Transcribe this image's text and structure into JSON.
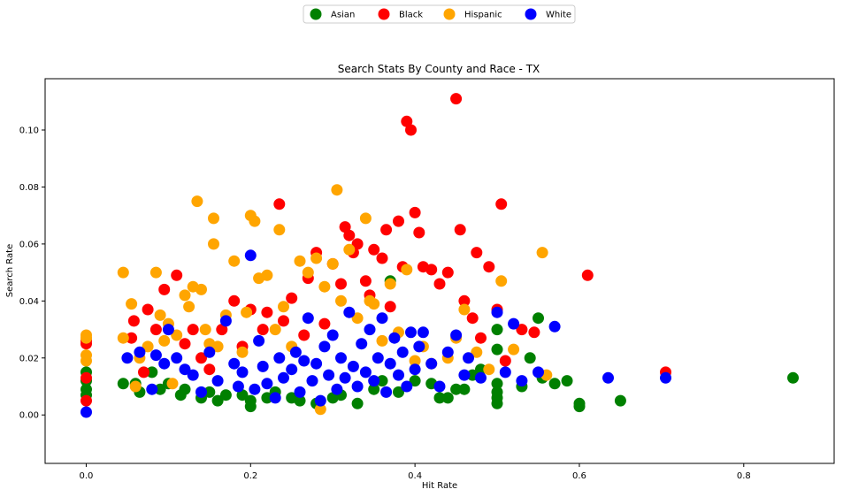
{
  "chart_data": {
    "type": "scatter",
    "title": "Search Stats By County and Race - TX",
    "xlabel": "Hit Rate",
    "ylabel": "Search Rate",
    "xlim": [
      -0.05,
      0.91
    ],
    "ylim": [
      -0.017,
      0.118
    ],
    "xticks": [
      0.0,
      0.2,
      0.4,
      0.6,
      0.8
    ],
    "xtick_labels": [
      "0.0",
      "0.2",
      "0.4",
      "0.6",
      "0.8"
    ],
    "yticks": [
      0.0,
      0.02,
      0.04,
      0.06,
      0.08,
      0.1
    ],
    "ytick_labels": [
      "0.00",
      "0.02",
      "0.04",
      "0.06",
      "0.08",
      "0.10"
    ],
    "grid": false,
    "legend": "top-center",
    "series": [
      {
        "name": "Asian",
        "color": "#008000",
        "points": [
          [
            0.0,
            0.015
          ],
          [
            0.0,
            0.012
          ],
          [
            0.0,
            0.009
          ],
          [
            0.0,
            0.007
          ],
          [
            0.045,
            0.011
          ],
          [
            0.06,
            0.011
          ],
          [
            0.065,
            0.008
          ],
          [
            0.08,
            0.015
          ],
          [
            0.09,
            0.009
          ],
          [
            0.1,
            0.011
          ],
          [
            0.115,
            0.007
          ],
          [
            0.12,
            0.009
          ],
          [
            0.14,
            0.006
          ],
          [
            0.15,
            0.008
          ],
          [
            0.16,
            0.005
          ],
          [
            0.17,
            0.007
          ],
          [
            0.19,
            0.007
          ],
          [
            0.2,
            0.005
          ],
          [
            0.2,
            0.003
          ],
          [
            0.22,
            0.006
          ],
          [
            0.23,
            0.008
          ],
          [
            0.25,
            0.006
          ],
          [
            0.26,
            0.005
          ],
          [
            0.28,
            0.004
          ],
          [
            0.3,
            0.006
          ],
          [
            0.31,
            0.007
          ],
          [
            0.33,
            0.004
          ],
          [
            0.35,
            0.009
          ],
          [
            0.36,
            0.012
          ],
          [
            0.37,
            0.047
          ],
          [
            0.38,
            0.008
          ],
          [
            0.4,
            0.012
          ],
          [
            0.42,
            0.011
          ],
          [
            0.43,
            0.006
          ],
          [
            0.44,
            0.006
          ],
          [
            0.45,
            0.009
          ],
          [
            0.46,
            0.009
          ],
          [
            0.47,
            0.014
          ],
          [
            0.48,
            0.016
          ],
          [
            0.5,
            0.004
          ],
          [
            0.5,
            0.006
          ],
          [
            0.5,
            0.008
          ],
          [
            0.5,
            0.011
          ],
          [
            0.5,
            0.023
          ],
          [
            0.5,
            0.03
          ],
          [
            0.53,
            0.01
          ],
          [
            0.54,
            0.02
          ],
          [
            0.55,
            0.034
          ],
          [
            0.555,
            0.013
          ],
          [
            0.57,
            0.011
          ],
          [
            0.585,
            0.012
          ],
          [
            0.6,
            0.003
          ],
          [
            0.6,
            0.004
          ],
          [
            0.65,
            0.005
          ],
          [
            0.86,
            0.013
          ]
        ]
      },
      {
        "name": "Black",
        "color": "#ff0000",
        "points": [
          [
            0.0,
            0.026
          ],
          [
            0.0,
            0.025
          ],
          [
            0.0,
            0.005
          ],
          [
            0.0,
            0.013
          ],
          [
            0.055,
            0.027
          ],
          [
            0.058,
            0.033
          ],
          [
            0.07,
            0.015
          ],
          [
            0.075,
            0.037
          ],
          [
            0.085,
            0.03
          ],
          [
            0.095,
            0.044
          ],
          [
            0.11,
            0.049
          ],
          [
            0.12,
            0.025
          ],
          [
            0.13,
            0.03
          ],
          [
            0.14,
            0.02
          ],
          [
            0.15,
            0.016
          ],
          [
            0.165,
            0.03
          ],
          [
            0.18,
            0.04
          ],
          [
            0.19,
            0.024
          ],
          [
            0.2,
            0.037
          ],
          [
            0.215,
            0.03
          ],
          [
            0.22,
            0.036
          ],
          [
            0.235,
            0.074
          ],
          [
            0.24,
            0.033
          ],
          [
            0.25,
            0.041
          ],
          [
            0.265,
            0.028
          ],
          [
            0.27,
            0.048
          ],
          [
            0.28,
            0.057
          ],
          [
            0.29,
            0.032
          ],
          [
            0.3,
            0.053
          ],
          [
            0.31,
            0.046
          ],
          [
            0.315,
            0.066
          ],
          [
            0.32,
            0.063
          ],
          [
            0.325,
            0.057
          ],
          [
            0.33,
            0.06
          ],
          [
            0.34,
            0.047
          ],
          [
            0.345,
            0.042
          ],
          [
            0.35,
            0.058
          ],
          [
            0.36,
            0.055
          ],
          [
            0.365,
            0.065
          ],
          [
            0.37,
            0.038
          ],
          [
            0.38,
            0.068
          ],
          [
            0.385,
            0.052
          ],
          [
            0.39,
            0.103
          ],
          [
            0.395,
            0.1
          ],
          [
            0.4,
            0.071
          ],
          [
            0.405,
            0.064
          ],
          [
            0.41,
            0.052
          ],
          [
            0.42,
            0.051
          ],
          [
            0.43,
            0.046
          ],
          [
            0.44,
            0.05
          ],
          [
            0.45,
            0.111
          ],
          [
            0.455,
            0.065
          ],
          [
            0.46,
            0.04
          ],
          [
            0.47,
            0.034
          ],
          [
            0.475,
            0.057
          ],
          [
            0.48,
            0.027
          ],
          [
            0.49,
            0.052
          ],
          [
            0.5,
            0.037
          ],
          [
            0.505,
            0.074
          ],
          [
            0.51,
            0.019
          ],
          [
            0.53,
            0.03
          ],
          [
            0.545,
            0.029
          ],
          [
            0.61,
            0.049
          ],
          [
            0.705,
            0.015
          ]
        ]
      },
      {
        "name": "Hispanic",
        "color": "#ffa500",
        "points": [
          [
            0.0,
            0.028
          ],
          [
            0.0,
            0.027
          ],
          [
            0.0,
            0.021
          ],
          [
            0.0,
            0.019
          ],
          [
            0.045,
            0.05
          ],
          [
            0.045,
            0.027
          ],
          [
            0.055,
            0.039
          ],
          [
            0.06,
            0.01
          ],
          [
            0.065,
            0.02
          ],
          [
            0.075,
            0.024
          ],
          [
            0.085,
            0.05
          ],
          [
            0.09,
            0.035
          ],
          [
            0.095,
            0.026
          ],
          [
            0.1,
            0.032
          ],
          [
            0.105,
            0.011
          ],
          [
            0.11,
            0.028
          ],
          [
            0.12,
            0.042
          ],
          [
            0.125,
            0.038
          ],
          [
            0.13,
            0.045
          ],
          [
            0.135,
            0.075
          ],
          [
            0.14,
            0.044
          ],
          [
            0.145,
            0.03
          ],
          [
            0.15,
            0.025
          ],
          [
            0.155,
            0.069
          ],
          [
            0.155,
            0.06
          ],
          [
            0.16,
            0.024
          ],
          [
            0.17,
            0.035
          ],
          [
            0.18,
            0.054
          ],
          [
            0.19,
            0.022
          ],
          [
            0.195,
            0.036
          ],
          [
            0.2,
            0.07
          ],
          [
            0.205,
            0.068
          ],
          [
            0.21,
            0.048
          ],
          [
            0.22,
            0.049
          ],
          [
            0.23,
            0.03
          ],
          [
            0.235,
            0.065
          ],
          [
            0.24,
            0.038
          ],
          [
            0.25,
            0.024
          ],
          [
            0.26,
            0.054
          ],
          [
            0.27,
            0.05
          ],
          [
            0.28,
            0.055
          ],
          [
            0.285,
            0.002
          ],
          [
            0.29,
            0.045
          ],
          [
            0.3,
            0.053
          ],
          [
            0.305,
            0.079
          ],
          [
            0.31,
            0.04
          ],
          [
            0.32,
            0.058
          ],
          [
            0.33,
            0.034
          ],
          [
            0.34,
            0.069
          ],
          [
            0.345,
            0.04
          ],
          [
            0.35,
            0.039
          ],
          [
            0.36,
            0.026
          ],
          [
            0.37,
            0.046
          ],
          [
            0.38,
            0.029
          ],
          [
            0.39,
            0.051
          ],
          [
            0.4,
            0.019
          ],
          [
            0.41,
            0.024
          ],
          [
            0.42,
            0.018
          ],
          [
            0.44,
            0.02
          ],
          [
            0.45,
            0.027
          ],
          [
            0.46,
            0.037
          ],
          [
            0.475,
            0.022
          ],
          [
            0.49,
            0.016
          ],
          [
            0.505,
            0.047
          ],
          [
            0.52,
            0.023
          ],
          [
            0.555,
            0.057
          ],
          [
            0.56,
            0.014
          ]
        ]
      },
      {
        "name": "White",
        "color": "#0000ff",
        "points": [
          [
            0.0,
            0.001
          ],
          [
            0.05,
            0.02
          ],
          [
            0.065,
            0.022
          ],
          [
            0.08,
            0.009
          ],
          [
            0.085,
            0.021
          ],
          [
            0.095,
            0.018
          ],
          [
            0.1,
            0.03
          ],
          [
            0.11,
            0.02
          ],
          [
            0.12,
            0.016
          ],
          [
            0.13,
            0.014
          ],
          [
            0.14,
            0.008
          ],
          [
            0.15,
            0.022
          ],
          [
            0.16,
            0.012
          ],
          [
            0.17,
            0.033
          ],
          [
            0.18,
            0.018
          ],
          [
            0.185,
            0.01
          ],
          [
            0.19,
            0.015
          ],
          [
            0.2,
            0.056
          ],
          [
            0.205,
            0.009
          ],
          [
            0.21,
            0.026
          ],
          [
            0.215,
            0.017
          ],
          [
            0.22,
            0.011
          ],
          [
            0.23,
            0.006
          ],
          [
            0.235,
            0.02
          ],
          [
            0.24,
            0.013
          ],
          [
            0.25,
            0.016
          ],
          [
            0.255,
            0.022
          ],
          [
            0.26,
            0.008
          ],
          [
            0.265,
            0.019
          ],
          [
            0.27,
            0.034
          ],
          [
            0.275,
            0.012
          ],
          [
            0.28,
            0.018
          ],
          [
            0.285,
            0.005
          ],
          [
            0.29,
            0.024
          ],
          [
            0.295,
            0.014
          ],
          [
            0.3,
            0.028
          ],
          [
            0.305,
            0.009
          ],
          [
            0.31,
            0.02
          ],
          [
            0.315,
            0.013
          ],
          [
            0.32,
            0.036
          ],
          [
            0.325,
            0.017
          ],
          [
            0.33,
            0.01
          ],
          [
            0.335,
            0.025
          ],
          [
            0.34,
            0.015
          ],
          [
            0.345,
            0.03
          ],
          [
            0.35,
            0.012
          ],
          [
            0.355,
            0.02
          ],
          [
            0.36,
            0.034
          ],
          [
            0.365,
            0.008
          ],
          [
            0.37,
            0.018
          ],
          [
            0.375,
            0.027
          ],
          [
            0.38,
            0.014
          ],
          [
            0.385,
            0.022
          ],
          [
            0.39,
            0.01
          ],
          [
            0.395,
            0.029
          ],
          [
            0.4,
            0.016
          ],
          [
            0.405,
            0.024
          ],
          [
            0.41,
            0.029
          ],
          [
            0.42,
            0.018
          ],
          [
            0.43,
            0.01
          ],
          [
            0.44,
            0.022
          ],
          [
            0.45,
            0.028
          ],
          [
            0.46,
            0.014
          ],
          [
            0.465,
            0.02
          ],
          [
            0.48,
            0.013
          ],
          [
            0.5,
            0.036
          ],
          [
            0.51,
            0.015
          ],
          [
            0.52,
            0.032
          ],
          [
            0.53,
            0.012
          ],
          [
            0.55,
            0.015
          ],
          [
            0.57,
            0.031
          ],
          [
            0.635,
            0.013
          ],
          [
            0.705,
            0.013
          ]
        ]
      }
    ]
  }
}
